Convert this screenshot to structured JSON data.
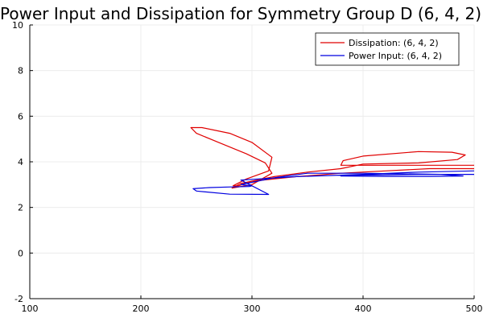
{
  "chart_data": {
    "type": "line",
    "title": "Power Input and Dissipation for Symmetry Group D (6, 4, 2)",
    "xlabel": "",
    "ylabel": "",
    "xlim": [
      100,
      500
    ],
    "ylim": [
      -2,
      10
    ],
    "xticks": [
      100,
      200,
      300,
      400,
      500
    ],
    "yticks": [
      -2,
      0,
      2,
      4,
      6,
      8,
      10
    ],
    "grid": true,
    "legend_position": "top-right",
    "series": [
      {
        "name": "Dissipation: (6, 4, 2)",
        "color": "#e00000",
        "x": [
          500,
          440,
          380,
          382,
          400,
          450,
          480,
          492,
          485,
          450,
          400,
          380,
          350,
          320,
          290,
          282,
          300,
          318,
          312,
          295,
          270,
          250,
          245,
          255,
          280,
          300,
          318,
          315,
          295,
          283,
          288,
          300,
          340,
          380,
          420,
          460,
          500
        ],
        "y": [
          3.85,
          3.85,
          3.85,
          4.05,
          4.25,
          4.45,
          4.42,
          4.3,
          4.1,
          3.95,
          3.9,
          3.7,
          3.55,
          3.35,
          3.05,
          2.85,
          3.0,
          3.5,
          3.95,
          4.35,
          4.85,
          5.25,
          5.5,
          5.5,
          5.25,
          4.85,
          4.2,
          3.6,
          3.25,
          2.95,
          2.95,
          3.15,
          3.35,
          3.5,
          3.6,
          3.7,
          3.7
        ]
      },
      {
        "name": "Power Input: (6, 4, 2)",
        "color": "#0000e0",
        "x": [
          500,
          450,
          380,
          380,
          420,
          460,
          490,
          470,
          400,
          350,
          320,
          300,
          290,
          300,
          298,
          282,
          262,
          247,
          250,
          280,
          315,
          290,
          340,
          400,
          450,
          500
        ],
        "y": [
          3.45,
          3.45,
          3.4,
          3.38,
          3.36,
          3.36,
          3.38,
          3.45,
          3.5,
          3.5,
          3.3,
          3.1,
          3.0,
          2.95,
          2.92,
          2.9,
          2.87,
          2.82,
          2.72,
          2.58,
          2.57,
          3.2,
          3.35,
          3.45,
          3.55,
          3.6
        ]
      }
    ]
  }
}
